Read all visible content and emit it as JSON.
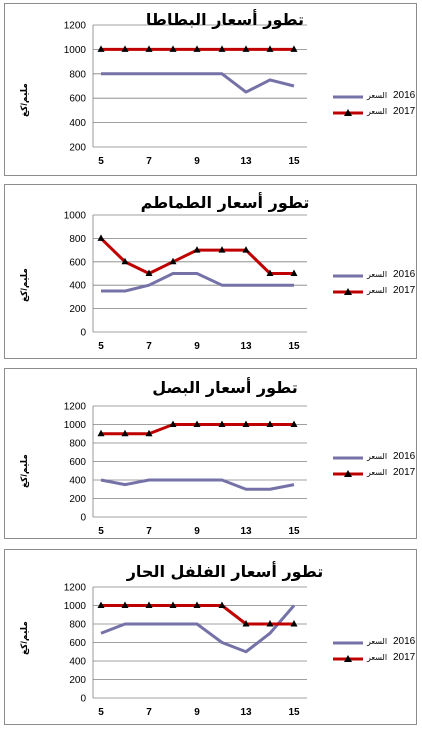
{
  "colors": {
    "series2016": "#7572a8",
    "series2017": "#c00000",
    "grid": "#808080"
  },
  "chart_data": [
    {
      "type": "line",
      "title": "تطور أسعار البطاطا",
      "ylabel": "مليم/كغ",
      "ylim": [
        200,
        1200
      ],
      "yticks": [
        200,
        400,
        600,
        800,
        1000,
        1200
      ],
      "x": [
        5,
        6,
        7,
        8,
        9,
        10,
        13,
        14,
        15
      ],
      "xticks": [
        "5",
        "7",
        "9",
        "13",
        "15"
      ],
      "series": [
        {
          "name": "2016 السعر",
          "values": [
            800,
            800,
            800,
            800,
            800,
            800,
            650,
            750,
            700
          ]
        },
        {
          "name": "2017 السعر",
          "values": [
            1000,
            1000,
            1000,
            1000,
            1000,
            1000,
            1000,
            1000,
            1000
          ]
        }
      ]
    },
    {
      "type": "line",
      "title": "تطور أسعار الطماطم",
      "ylabel": "مليم/كغ",
      "ylim": [
        0,
        1000
      ],
      "yticks": [
        0,
        200,
        400,
        600,
        800,
        1000
      ],
      "x": [
        5,
        6,
        7,
        8,
        9,
        10,
        13,
        14,
        15
      ],
      "xticks": [
        "5",
        "7",
        "9",
        "13",
        "15"
      ],
      "series": [
        {
          "name": "2016 السعر",
          "values": [
            350,
            350,
            400,
            500,
            500,
            400,
            400,
            400,
            400
          ]
        },
        {
          "name": "2017 السعر",
          "values": [
            800,
            600,
            500,
            600,
            700,
            700,
            700,
            500,
            500
          ]
        }
      ]
    },
    {
      "type": "line",
      "title": "تطور أسعار البصل",
      "ylabel": "مليم/كغ",
      "ylim": [
        0,
        1200
      ],
      "yticks": [
        0,
        200,
        400,
        600,
        800,
        1000,
        1200
      ],
      "x": [
        5,
        6,
        7,
        8,
        9,
        10,
        13,
        14,
        15
      ],
      "xticks": [
        "5",
        "7",
        "9",
        "13",
        "15"
      ],
      "series": [
        {
          "name": "2016 السعر",
          "values": [
            400,
            350,
            400,
            400,
            400,
            400,
            300,
            300,
            350
          ]
        },
        {
          "name": "2017 السعر",
          "values": [
            900,
            900,
            900,
            1000,
            1000,
            1000,
            1000,
            1000,
            1000
          ]
        }
      ]
    },
    {
      "type": "line",
      "title": "تطور أسعار الفلفل الحار",
      "ylabel": "مليم/كغ",
      "ylim": [
        0,
        1200
      ],
      "yticks": [
        0,
        200,
        400,
        600,
        800,
        1000,
        1200
      ],
      "x": [
        5,
        6,
        7,
        8,
        9,
        10,
        13,
        14,
        15
      ],
      "xticks": [
        "5",
        "7",
        "9",
        "13",
        "15"
      ],
      "series": [
        {
          "name": "2016 السعر",
          "values": [
            700,
            800,
            800,
            800,
            800,
            600,
            500,
            700,
            1000
          ]
        },
        {
          "name": "2017 السعر",
          "values": [
            1000,
            1000,
            1000,
            1000,
            1000,
            1000,
            800,
            800,
            800
          ]
        }
      ]
    }
  ]
}
